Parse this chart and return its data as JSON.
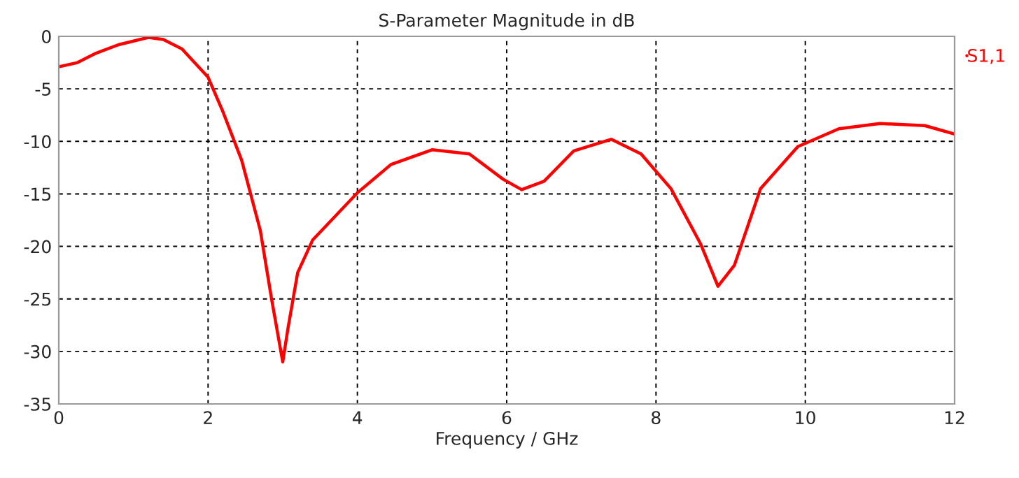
{
  "chart_data": {
    "type": "line",
    "title": "S-Parameter Magnitude in dB",
    "xlabel": "Frequency / GHz",
    "xlim": [
      0,
      12
    ],
    "xticks": [
      0,
      2,
      4,
      6,
      8,
      10,
      12
    ],
    "ylim": [
      -35,
      0
    ],
    "yticks": [
      -35,
      -30,
      -25,
      -20,
      -15,
      -10,
      -5,
      0
    ],
    "grid": true,
    "legend": "top right",
    "marker": "none",
    "line_style": "solid",
    "series": [
      {
        "name": "S1,1",
        "color": "#ff0000",
        "x": [
          0,
          0.25,
          0.5,
          0.8,
          1.2,
          1.4,
          1.65,
          2.0,
          2.2,
          2.45,
          2.7,
          2.85,
          3.0,
          3.07,
          3.2,
          3.4,
          4.0,
          4.45,
          5.0,
          5.5,
          5.95,
          6.2,
          6.5,
          6.9,
          7.4,
          7.8,
          8.2,
          8.6,
          8.83,
          9.05,
          9.4,
          9.9,
          10.45,
          11.0,
          11.6,
          12
        ],
        "values": [
          -2.9,
          -2.5,
          -1.6,
          -0.8,
          -0.1,
          -0.3,
          -1.2,
          -3.9,
          -7.2,
          -11.8,
          -18.5,
          -25,
          -31,
          -27.8,
          -22.5,
          -19.4,
          -14.9,
          -12.2,
          -10.8,
          -11.2,
          -13.6,
          -14.6,
          -13.8,
          -10.9,
          -9.8,
          -11.2,
          -14.5,
          -19.8,
          -23.8,
          -21.8,
          -14.5,
          -10.5,
          -8.8,
          -8.3,
          -8.5,
          -9.3
        ]
      }
    ]
  }
}
